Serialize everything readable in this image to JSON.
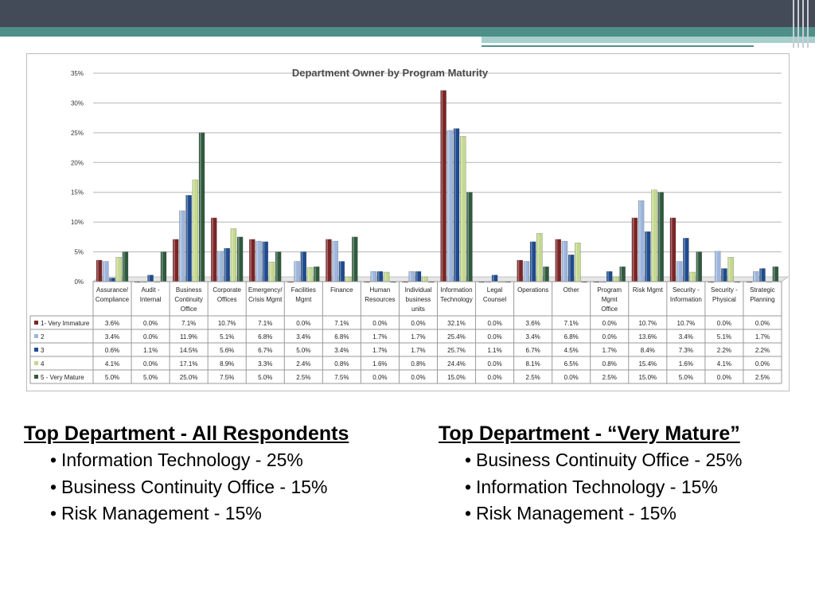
{
  "chart_data": {
    "type": "bar",
    "title": "Department Owner by Program Maturity",
    "categories": [
      [
        "Assurance/",
        "Compliance"
      ],
      [
        "Audit -",
        "Internal"
      ],
      [
        "Business",
        "Continuity",
        "Office"
      ],
      [
        "Corporate",
        "Offices"
      ],
      [
        "Emergency/",
        "Crisis Mgmt"
      ],
      [
        "Facilities",
        "Mgmt"
      ],
      [
        "Finance"
      ],
      [
        "Human",
        "Resources"
      ],
      [
        "Individual",
        "business",
        "units"
      ],
      [
        "Information",
        "Technology"
      ],
      [
        "Legal",
        "Counsel"
      ],
      [
        "Operations"
      ],
      [
        "Other"
      ],
      [
        "Program",
        "Mgmt",
        "Office"
      ],
      [
        "Risk Mgmt"
      ],
      [
        "Security -",
        "Information"
      ],
      [
        "Security -",
        "Physical"
      ],
      [
        "Strategic",
        "Planning"
      ]
    ],
    "series": [
      {
        "name": "1- Very Immature",
        "color": "#7b2527",
        "values": [
          3.6,
          0.0,
          7.1,
          10.7,
          7.1,
          0.0,
          7.1,
          0.0,
          0.0,
          32.1,
          0.0,
          3.6,
          7.1,
          0.0,
          10.7,
          10.7,
          0.0,
          0.0
        ]
      },
      {
        "name": "2",
        "color": "#9db6dc",
        "values": [
          3.4,
          0.0,
          11.9,
          5.1,
          6.8,
          3.4,
          6.8,
          1.7,
          1.7,
          25.4,
          0.0,
          3.4,
          6.8,
          0.0,
          13.6,
          3.4,
          5.1,
          1.7
        ]
      },
      {
        "name": "3",
        "color": "#1f4b8e",
        "values": [
          0.6,
          1.1,
          14.5,
          5.6,
          6.7,
          5.0,
          3.4,
          1.7,
          1.7,
          25.7,
          1.1,
          6.7,
          4.5,
          1.7,
          8.4,
          7.3,
          2.2,
          2.2
        ]
      },
      {
        "name": "4",
        "color": "#c4d98e",
        "values": [
          4.1,
          0.0,
          17.1,
          8.9,
          3.3,
          2.4,
          0.8,
          1.6,
          0.8,
          24.4,
          0.0,
          8.1,
          6.5,
          0.8,
          15.4,
          1.6,
          4.1,
          0.0
        ]
      },
      {
        "name": "5 - Very Mature",
        "color": "#2f5a3e",
        "values": [
          5.0,
          5.0,
          25.0,
          7.5,
          5.0,
          2.5,
          7.5,
          0.0,
          0.0,
          15.0,
          0.0,
          2.5,
          0.0,
          2.5,
          15.0,
          5.0,
          0.0,
          2.5
        ]
      }
    ],
    "y_ticks": [
      "0%",
      "5%",
      "10%",
      "15%",
      "20%",
      "25%",
      "30%",
      "35%"
    ],
    "ylim": [
      0,
      35
    ],
    "grid": true,
    "legend": "data-table",
    "value_format": "percent-1dp"
  },
  "sections": [
    {
      "heading": "Top Department - All Respondents",
      "items": [
        "Information Technology - 25%",
        "Business Continuity Office - 15%",
        "Risk Management - 15%"
      ]
    },
    {
      "heading": "Top Department - “Very Mature”",
      "items": [
        "Business Continuity Office - 25%",
        "Information Technology - 15%",
        "Risk Management - 15%"
      ]
    }
  ],
  "bullet": "•"
}
